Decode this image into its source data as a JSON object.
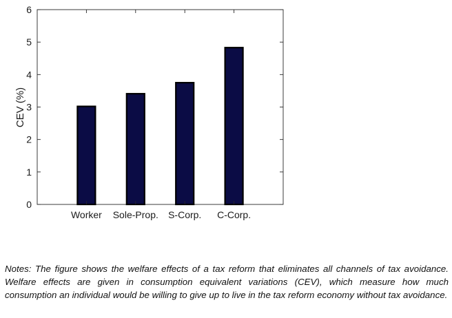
{
  "chart_data": {
    "type": "bar",
    "categories": [
      "Worker",
      "Sole-Prop.",
      "S-Corp.",
      "C-Corp."
    ],
    "values": [
      3.02,
      3.41,
      3.75,
      4.83
    ],
    "title": "",
    "xlabel": "",
    "ylabel": "CEV (%)",
    "ylim": [
      0,
      6
    ],
    "yticks": [
      0,
      1,
      2,
      3,
      4,
      5,
      6
    ],
    "grid": false,
    "bar_color": "#0b0c45",
    "bar_edge_color": "#000000"
  },
  "notes": "Notes: The figure shows the welfare effects of a tax reform that eliminates all channels of tax avoidance. Welfare effects are given in consumption equivalent variations (CEV), which measure how much consumption an individual would be willing to give up to live in the tax reform economy without tax avoidance."
}
